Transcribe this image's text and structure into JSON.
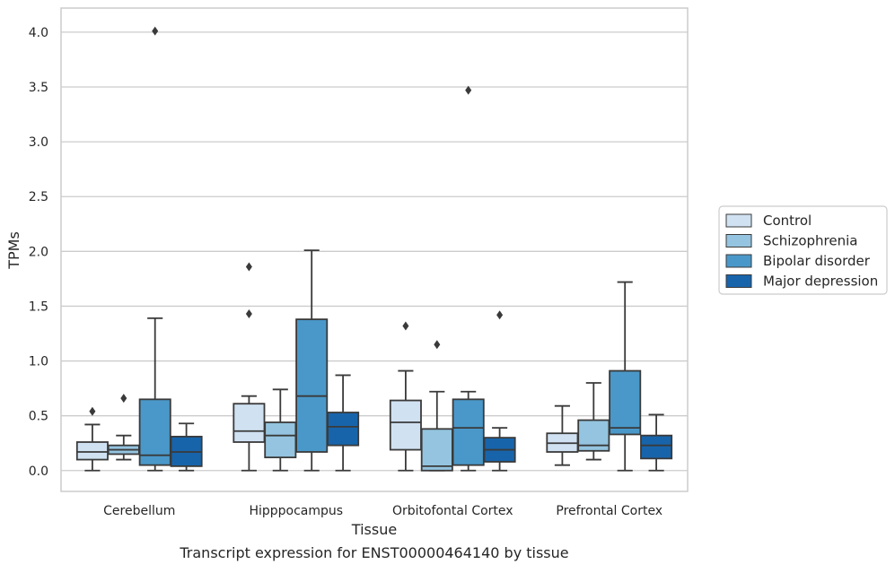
{
  "chart_data": {
    "type": "boxplot",
    "title": "",
    "caption": "Transcript expression for ENST00000464140 by tissue",
    "xlabel": "Tissue",
    "ylabel": "TPMs",
    "ylim": [
      -0.19,
      4.22
    ],
    "yticks": [
      0.0,
      0.5,
      1.0,
      1.5,
      2.0,
      2.5,
      3.0,
      3.5,
      4.0
    ],
    "ytick_labels": [
      "0.0",
      "0.5",
      "1.0",
      "1.5",
      "2.0",
      "2.5",
      "3.0",
      "3.5",
      "4.0"
    ],
    "grid": "horizontal",
    "legend_position": "right",
    "categories": [
      "Cerebellum",
      "Hipppocampus",
      "Orbitofontal Cortex",
      "Prefrontal Cortex"
    ],
    "series": [
      {
        "name": "Control",
        "color": "#d0e1f2",
        "boxes": [
          {
            "whislo": 0.0,
            "q1": 0.1,
            "med": 0.17,
            "q3": 0.26,
            "whishi": 0.42,
            "fliers": [
              0.54
            ]
          },
          {
            "whislo": 0.0,
            "q1": 0.26,
            "med": 0.36,
            "q3": 0.61,
            "whishi": 0.68,
            "fliers": [
              1.43,
              1.86
            ]
          },
          {
            "whislo": 0.0,
            "q1": 0.19,
            "med": 0.44,
            "q3": 0.64,
            "whishi": 0.91,
            "fliers": [
              1.32
            ]
          },
          {
            "whislo": 0.05,
            "q1": 0.17,
            "med": 0.25,
            "q3": 0.34,
            "whishi": 0.59,
            "fliers": []
          }
        ]
      },
      {
        "name": "Schizophrenia",
        "color": "#94c4df",
        "boxes": [
          {
            "whislo": 0.1,
            "q1": 0.15,
            "med": 0.19,
            "q3": 0.23,
            "whishi": 0.32,
            "fliers": [
              0.66
            ]
          },
          {
            "whislo": 0.0,
            "q1": 0.12,
            "med": 0.32,
            "q3": 0.44,
            "whishi": 0.74,
            "fliers": []
          },
          {
            "whislo": 0.0,
            "q1": 0.0,
            "med": 0.04,
            "q3": 0.38,
            "whishi": 0.72,
            "fliers": [
              1.15
            ]
          },
          {
            "whislo": 0.1,
            "q1": 0.18,
            "med": 0.23,
            "q3": 0.46,
            "whishi": 0.8,
            "fliers": []
          }
        ]
      },
      {
        "name": "Bipolar disorder",
        "color": "#4a98c9",
        "boxes": [
          {
            "whislo": 0.0,
            "q1": 0.05,
            "med": 0.14,
            "q3": 0.65,
            "whishi": 1.39,
            "fliers": [
              4.01
            ]
          },
          {
            "whislo": 0.0,
            "q1": 0.17,
            "med": 0.68,
            "q3": 1.38,
            "whishi": 2.01,
            "fliers": []
          },
          {
            "whislo": 0.0,
            "q1": 0.05,
            "med": 0.39,
            "q3": 0.65,
            "whishi": 0.72,
            "fliers": [
              3.47
            ]
          },
          {
            "whislo": 0.0,
            "q1": 0.33,
            "med": 0.39,
            "q3": 0.91,
            "whishi": 1.72,
            "fliers": []
          }
        ]
      },
      {
        "name": "Major depression",
        "color": "#1764ab",
        "boxes": [
          {
            "whislo": 0.0,
            "q1": 0.04,
            "med": 0.17,
            "q3": 0.31,
            "whishi": 0.43,
            "fliers": []
          },
          {
            "whislo": 0.0,
            "q1": 0.23,
            "med": 0.4,
            "q3": 0.53,
            "whishi": 0.87,
            "fliers": []
          },
          {
            "whislo": 0.0,
            "q1": 0.08,
            "med": 0.19,
            "q3": 0.3,
            "whishi": 0.39,
            "fliers": [
              1.42
            ]
          },
          {
            "whislo": 0.0,
            "q1": 0.11,
            "med": 0.23,
            "q3": 0.32,
            "whishi": 0.51,
            "fliers": []
          }
        ]
      }
    ]
  }
}
